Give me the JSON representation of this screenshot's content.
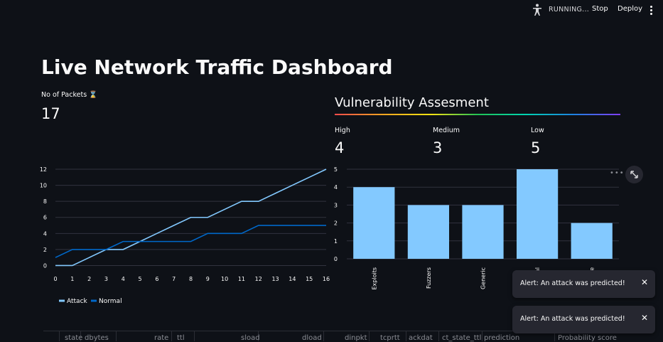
{
  "topbar": {
    "status": "RUNNING...",
    "stop_label": "Stop",
    "deploy_label": "Deploy",
    "status_icon": "running-man-icon",
    "menu_icon": "kebab-menu-icon"
  },
  "title": "Live Network Traffic Dashboard",
  "packets": {
    "label": "No of Packets ⌛",
    "value": "17"
  },
  "vulnerability": {
    "title": "Vulnerability Assesment",
    "metrics": [
      {
        "label": "High",
        "value": "4"
      },
      {
        "label": "Medium",
        "value": "3"
      },
      {
        "label": "Low",
        "value": "5"
      }
    ]
  },
  "chart_data": [
    {
      "type": "line",
      "x": [
        0,
        1,
        2,
        3,
        4,
        5,
        6,
        7,
        8,
        9,
        10,
        11,
        12,
        13,
        14,
        15,
        16
      ],
      "series": [
        {
          "name": "Attack",
          "color": "#83c9ff",
          "values": [
            0,
            0,
            1,
            2,
            2,
            3,
            4,
            5,
            6,
            6,
            7,
            8,
            8,
            9,
            10,
            11,
            12
          ]
        },
        {
          "name": "Normal",
          "color": "#0068c9",
          "values": [
            1,
            2,
            2,
            2,
            3,
            3,
            3,
            3,
            3,
            4,
            4,
            4,
            5,
            5,
            5,
            5,
            5
          ]
        }
      ],
      "yticks": [
        0,
        2,
        4,
        6,
        8,
        10,
        12
      ],
      "xlim": [
        0,
        16
      ],
      "ylim": [
        -0.4,
        12
      ],
      "grid": true,
      "legend": "bottom"
    },
    {
      "type": "bar",
      "categories": [
        "Exploits",
        "Fuzzers",
        "Generic",
        "al",
        "ce"
      ],
      "values": [
        4,
        3,
        3,
        5,
        2
      ],
      "color": "#83c9ff",
      "yticks": [
        0,
        1,
        2,
        3,
        4,
        5
      ],
      "ylim": [
        0,
        5
      ],
      "grid": true
    }
  ],
  "toasts": [
    {
      "text": "Alert: An attack was predicted!"
    },
    {
      "text": "Alert: An attack was predicted!"
    }
  ],
  "table": {
    "headers": [
      "state",
      "dbytes",
      "rate",
      "ttl",
      "sload",
      "dload",
      "dinpkt",
      "tcprtt",
      "ackdat",
      "ct_state_ttl",
      "prediction",
      "Probability score"
    ]
  }
}
